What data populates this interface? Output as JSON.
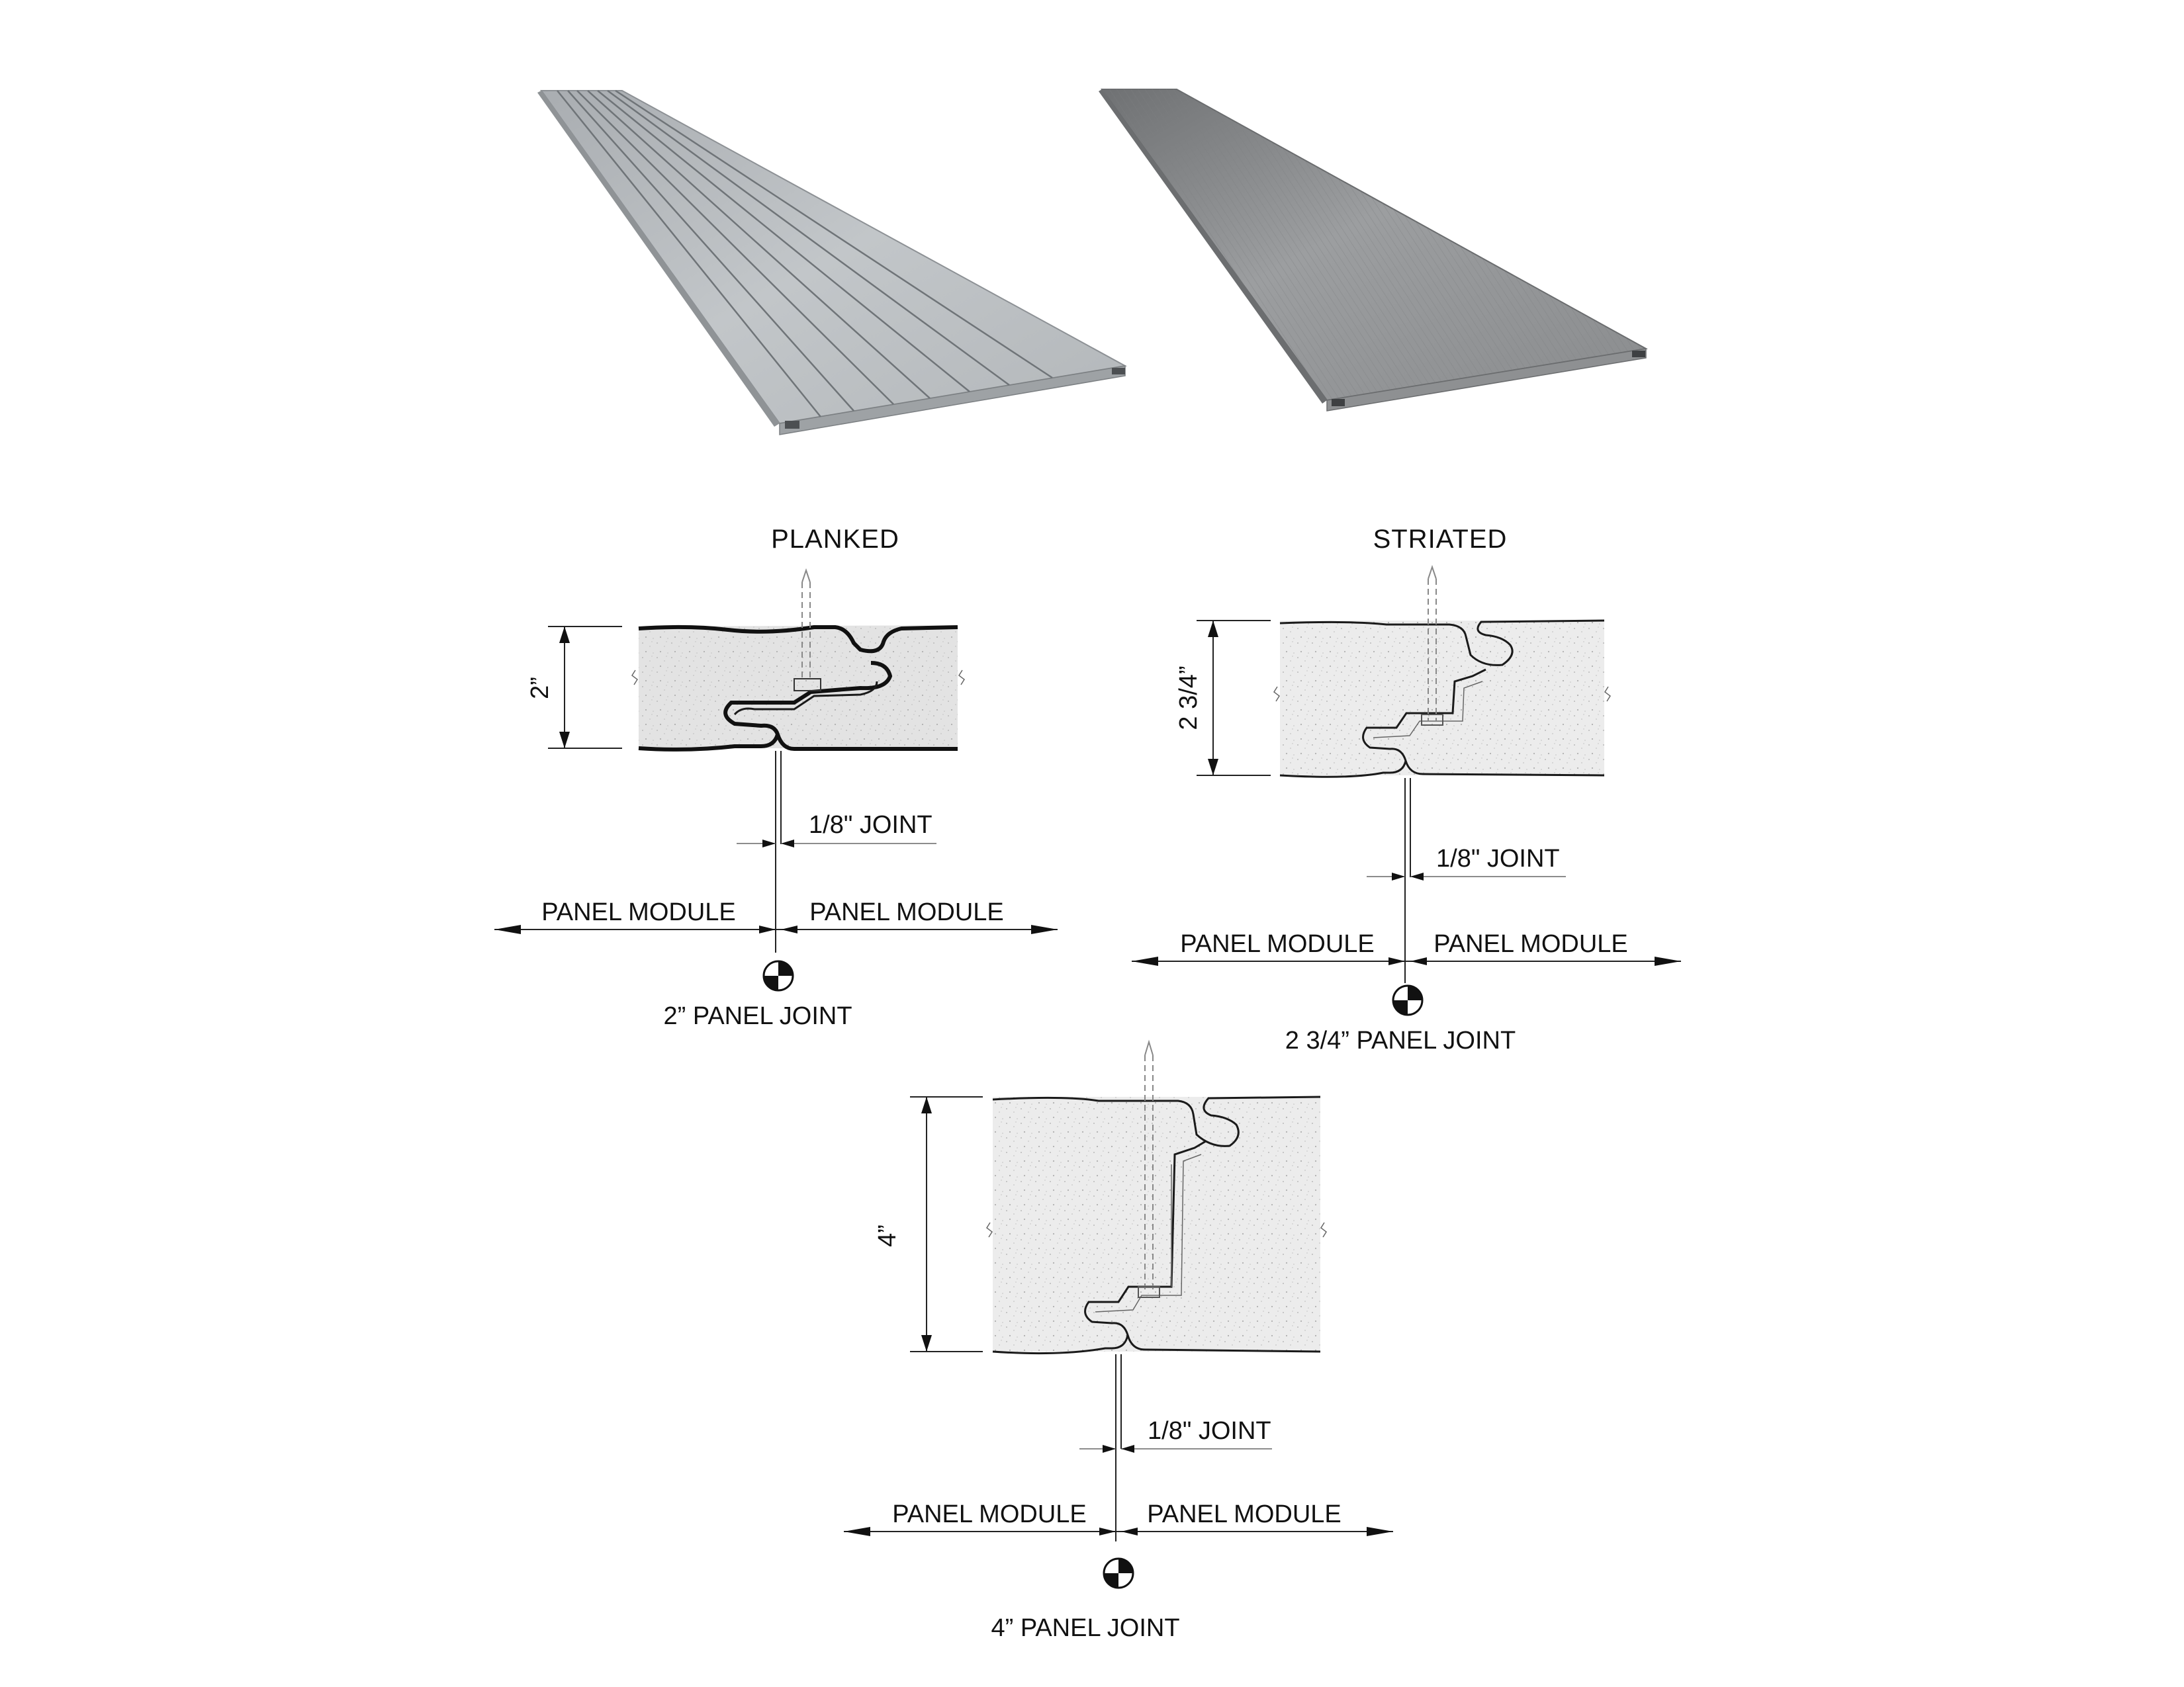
{
  "panels": {
    "planked": {
      "heading": "PLANKED",
      "color": "#b7bcbf"
    },
    "striated": {
      "heading": "STRIATED",
      "color": "#9fa1a2"
    }
  },
  "details": {
    "two_inch": {
      "thickness_label": "2”",
      "joint_label": "1/8\" JOINT",
      "module_left": "PANEL MODULE",
      "module_right": "PANEL MODULE",
      "title": "2” PANEL JOINT"
    },
    "two_three_quarter": {
      "thickness_label": "2 3/4”",
      "joint_label": "1/8\" JOINT",
      "module_left": "PANEL MODULE",
      "module_right": "PANEL MODULE",
      "title": "2 3/4” PANEL JOINT"
    },
    "four_inch": {
      "thickness_label": "4”",
      "joint_label": "1/8\" JOINT",
      "module_left": "PANEL MODULE",
      "module_right": "PANEL MODULE",
      "title": "4” PANEL JOINT"
    }
  }
}
